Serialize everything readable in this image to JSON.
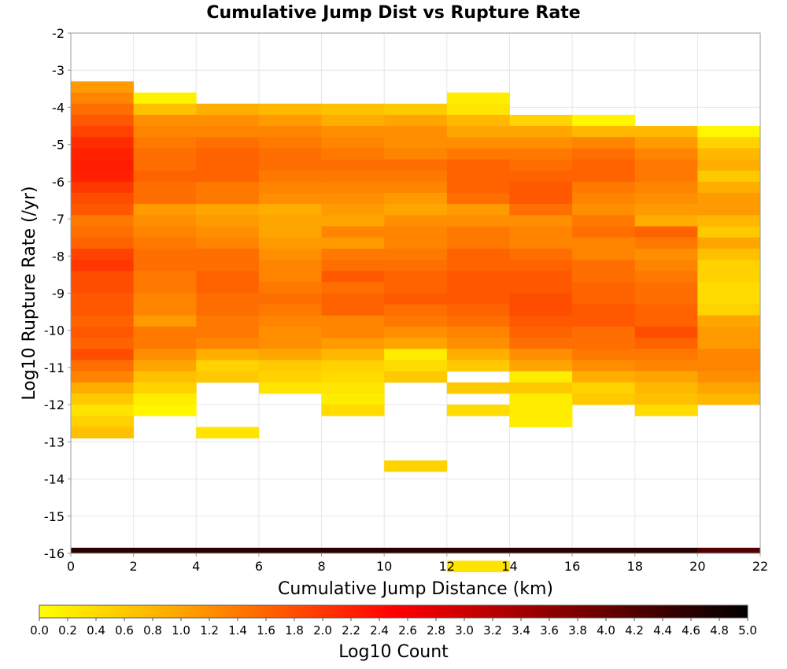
{
  "chart_data": {
    "type": "heatmap",
    "title": "Cumulative Jump Dist vs Rupture Rate",
    "xlabel": "Cumulative Jump Distance (km)",
    "ylabel": "Log10 Rupture Rate (/yr)",
    "xlim": [
      0,
      22
    ],
    "ylim": [
      -16,
      -2
    ],
    "x_ticks": [
      "0",
      "2",
      "4",
      "6",
      "8",
      "10",
      "12",
      "14",
      "16",
      "18",
      "20",
      "22"
    ],
    "y_ticks": [
      "-2",
      "-3",
      "-4",
      "-5",
      "-6",
      "-7",
      "-8",
      "-9",
      "-10",
      "-11",
      "-12",
      "-13",
      "-14",
      "-15",
      "-16"
    ],
    "x_bin_width": 2,
    "y_bin_height": 0.3,
    "colorbar": {
      "label": "Log10 Count",
      "range": [
        0,
        5
      ],
      "ticks": [
        "0.0",
        "0.2",
        "0.4",
        "0.6",
        "0.8",
        "1.0",
        "1.2",
        "1.4",
        "1.6",
        "1.8",
        "2.0",
        "2.2",
        "2.4",
        "2.6",
        "2.8",
        "3.0",
        "3.2",
        "3.4",
        "3.6",
        "3.8",
        "4.0",
        "4.2",
        "4.4",
        "4.6",
        "4.8",
        "5.0"
      ],
      "stops": [
        {
          "v": 0.0,
          "color": "#ffff00"
        },
        {
          "v": 1.0,
          "color": "#ffa500"
        },
        {
          "v": 2.5,
          "color": "#ff0000"
        },
        {
          "v": 3.5,
          "color": "#990000"
        },
        {
          "v": 5.0,
          "color": "#000000"
        }
      ]
    },
    "columns": [
      {
        "x0": 0,
        "y_top": -3.3,
        "values": [
          1.1,
          1.3,
          1.5,
          1.7,
          1.9,
          2.1,
          2.2,
          2.25,
          2.2,
          2.0,
          1.8,
          1.7,
          1.4,
          1.5,
          1.6,
          1.9,
          2.0,
          1.8,
          1.8,
          1.7,
          1.7,
          1.6,
          1.7,
          1.6,
          1.8,
          1.5,
          1.3,
          0.9,
          0.6,
          0.3,
          0.5,
          0.7
        ]
      },
      {
        "x0": 2,
        "y_top": -3.6,
        "values": [
          0.15,
          0.7,
          1.2,
          1.3,
          1.4,
          1.5,
          1.5,
          1.6,
          1.5,
          1.5,
          1.1,
          1.2,
          1.3,
          1.4,
          1.5,
          1.5,
          1.4,
          1.4,
          1.3,
          1.3,
          1.1,
          1.4,
          1.4,
          1.2,
          1.0,
          0.7,
          0.5,
          0.2,
          0.1
        ]
      },
      {
        "x0": 4,
        "y_top": -3.9,
        "values": [
          0.9,
          1.2,
          1.3,
          1.5,
          1.6,
          1.6,
          1.6,
          1.4,
          1.4,
          1.0,
          1.1,
          1.2,
          1.3,
          1.5,
          1.5,
          1.6,
          1.6,
          1.5,
          1.5,
          1.4,
          1.4,
          1.3,
          0.9,
          0.5,
          0.6,
          -1,
          -1,
          -1,
          -1,
          0.3
        ]
      },
      {
        "x0": 6,
        "y_top": -3.9,
        "values": [
          0.8,
          1.1,
          1.3,
          1.4,
          1.5,
          1.5,
          1.4,
          1.3,
          1.2,
          0.9,
          1.0,
          1.0,
          1.1,
          1.2,
          1.3,
          1.3,
          1.4,
          1.5,
          1.4,
          1.3,
          1.2,
          1.2,
          1.0,
          0.6,
          0.5,
          0.3
        ]
      },
      {
        "x0": 8,
        "y_top": -3.9,
        "values": [
          0.7,
          0.9,
          1.2,
          1.3,
          1.4,
          1.5,
          1.4,
          1.3,
          1.2,
          1.1,
          1.0,
          1.3,
          1.1,
          1.4,
          1.5,
          1.7,
          1.5,
          1.6,
          1.6,
          1.3,
          1.3,
          1.1,
          0.8,
          0.5,
          0.4,
          0.3,
          0.2,
          0.4
        ]
      },
      {
        "x0": 10,
        "y_top": -3.9,
        "values": [
          0.6,
          1.0,
          1.2,
          1.2,
          1.3,
          1.5,
          1.4,
          1.3,
          1.1,
          1.0,
          1.2,
          1.3,
          1.3,
          1.4,
          1.5,
          1.6,
          1.6,
          1.7,
          1.5,
          1.4,
          1.2,
          1.0,
          0.2,
          0.4,
          0.6,
          -1,
          -1,
          -1,
          -1,
          -1,
          -1,
          -1,
          0.5
        ]
      },
      {
        "x0": 12,
        "y_top": -3.6,
        "values": [
          0.2,
          0.3,
          0.8,
          1.0,
          1.2,
          1.4,
          1.6,
          1.6,
          1.6,
          1.5,
          1.1,
          1.2,
          1.4,
          1.4,
          1.6,
          1.6,
          1.7,
          1.7,
          1.7,
          1.6,
          1.5,
          1.3,
          1.2,
          0.9,
          0.6,
          -1,
          0.6,
          -1,
          0.4,
          -1,
          -1,
          -1,
          -1,
          -1,
          -1,
          -1,
          -1,
          -1,
          -1,
          -1,
          -1,
          -1,
          0.3
        ]
      },
      {
        "x0": 14,
        "y_top": -4.2,
        "values": [
          0.5,
          1.0,
          1.2,
          1.4,
          1.5,
          1.6,
          1.7,
          1.7,
          1.5,
          1.2,
          1.3,
          1.3,
          1.5,
          1.6,
          1.7,
          1.7,
          1.8,
          1.8,
          1.7,
          1.6,
          1.5,
          1.2,
          1.0,
          0.2,
          0.6,
          0.2,
          0.2,
          0.2
        ]
      },
      {
        "x0": 16,
        "y_top": -4.2,
        "values": [
          0.1,
          0.8,
          1.3,
          1.5,
          1.6,
          1.6,
          1.4,
          1.3,
          1.2,
          1.4,
          1.5,
          1.3,
          1.3,
          1.5,
          1.5,
          1.6,
          1.6,
          1.7,
          1.7,
          1.5,
          1.5,
          1.4,
          1.2,
          0.9,
          0.5,
          0.6
        ]
      },
      {
        "x0": 18,
        "y_top": -4.5,
        "values": [
          0.8,
          1.1,
          1.3,
          1.4,
          1.4,
          1.3,
          1.2,
          1.1,
          0.9,
          1.6,
          1.4,
          1.2,
          1.3,
          1.4,
          1.5,
          1.5,
          1.6,
          1.6,
          1.8,
          1.6,
          1.4,
          1.3,
          1.0,
          0.8,
          0.7,
          0.4
        ]
      },
      {
        "x0": 20,
        "y_top": -4.5,
        "values": [
          0.1,
          0.5,
          0.8,
          0.9,
          0.6,
          0.9,
          1.1,
          1.1,
          0.8,
          0.6,
          1.0,
          0.7,
          0.5,
          0.5,
          0.4,
          0.4,
          0.5,
          1.0,
          1.1,
          1.1,
          1.3,
          1.3,
          1.2,
          1.0,
          0.8
        ]
      }
    ],
    "bottom_row": {
      "y0": -16,
      "y1": -15.85,
      "values": [
        4.6,
        4.6,
        4.6,
        4.6,
        4.6,
        4.6,
        4.6,
        4.6,
        4.6,
        4.6,
        4.2
      ]
    }
  }
}
